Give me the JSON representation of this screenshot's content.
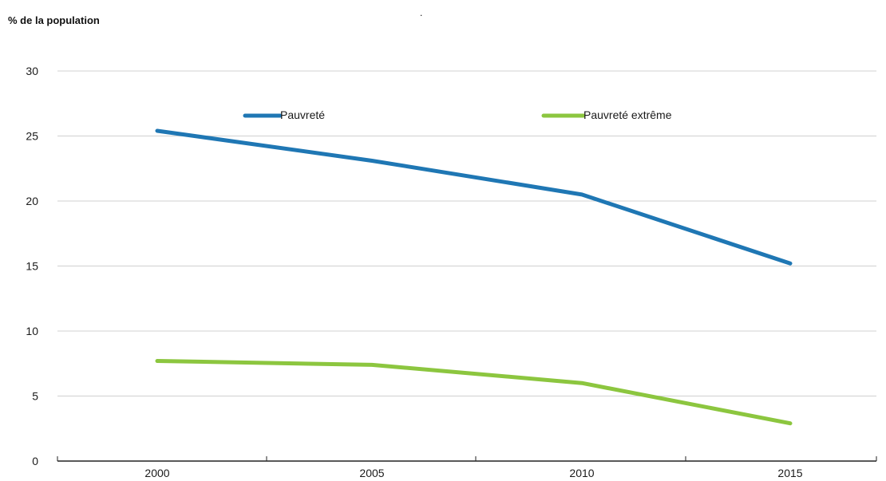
{
  "chart_data": {
    "type": "line",
    "title": "",
    "ylabel": "% de la population",
    "xlabel": "",
    "x": [
      2000,
      2005,
      2010,
      2015
    ],
    "ylim": [
      0,
      30
    ],
    "yticks": [
      0,
      5,
      10,
      15,
      20,
      25,
      30
    ],
    "grid": true,
    "legend_position": "top",
    "series": [
      {
        "name": "Pauvreté",
        "color": "#1f77b4",
        "values": [
          25.4,
          23.1,
          20.5,
          15.2
        ]
      },
      {
        "name": "Pauvreté extrême",
        "color": "#8cc63f",
        "values": [
          7.7,
          7.4,
          6.0,
          2.9
        ]
      }
    ]
  }
}
